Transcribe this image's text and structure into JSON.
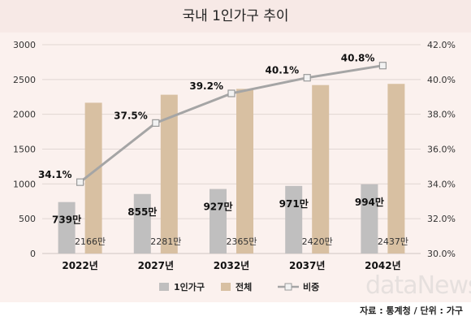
{
  "title": "국내 1인가구 추이",
  "source": "자료 : 통계청 / 단위 : 가구",
  "watermark": "dataNews",
  "chart_data": {
    "type": "bar",
    "categories": [
      "2022년",
      "2027년",
      "2032년",
      "2037년",
      "2042년"
    ],
    "series": [
      {
        "name": "1인가구",
        "type": "bar",
        "axis": "left",
        "values": [
          739,
          855,
          927,
          971,
          994
        ],
        "labels": [
          "739만",
          "855만",
          "927만",
          "971만",
          "994만"
        ],
        "color": "#c0bfbf"
      },
      {
        "name": "전체",
        "type": "bar",
        "axis": "left",
        "values": [
          2166,
          2281,
          2365,
          2420,
          2437
        ],
        "labels": [
          "2166만",
          "2281만",
          "2365만",
          "2420만",
          "2437만"
        ],
        "color": "#d8c0a2"
      },
      {
        "name": "비중",
        "type": "line",
        "axis": "right",
        "values": [
          34.1,
          37.5,
          39.2,
          40.1,
          40.8
        ],
        "labels": [
          "34.1%",
          "37.5%",
          "39.2%",
          "40.1%",
          "40.8%"
        ],
        "color": "#a5a5a5"
      }
    ],
    "y_left": {
      "min": 0,
      "max": 3000,
      "ticks": [
        "0",
        "500",
        "1000",
        "1500",
        "2000",
        "2500",
        "3000"
      ]
    },
    "y_right": {
      "min": 30,
      "max": 42,
      "ticks": [
        "30.0%",
        "32.0%",
        "34.0%",
        "36.0%",
        "38.0%",
        "40.0%",
        "42.0%"
      ]
    },
    "grid": true,
    "legend_position": "bottom"
  }
}
